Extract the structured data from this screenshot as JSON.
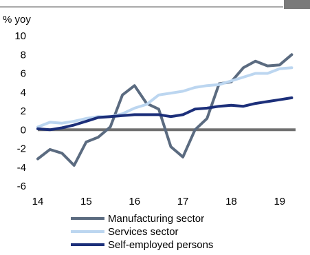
{
  "chart_data": {
    "type": "line",
    "unit_label": "% yoy",
    "xlim": [
      14,
      19.33
    ],
    "ylim": [
      -6,
      10
    ],
    "x_ticks": [
      "14",
      "15",
      "16",
      "17",
      "18",
      "19"
    ],
    "y_ticks": [
      "10",
      "8",
      "6",
      "4",
      "2",
      "0",
      "-2",
      "-4",
      "-6"
    ],
    "zero_line": true,
    "legend_position": "bottom-center",
    "series": [
      {
        "name": "Manufacturing sector",
        "color": "#5b6b80",
        "points": [
          [
            14.0,
            -3.1
          ],
          [
            14.25,
            -2.1
          ],
          [
            14.5,
            -2.5
          ],
          [
            14.75,
            -3.8
          ],
          [
            15.0,
            -1.3
          ],
          [
            15.25,
            -0.8
          ],
          [
            15.5,
            0.3
          ],
          [
            15.75,
            3.7
          ],
          [
            16.0,
            4.7
          ],
          [
            16.25,
            2.8
          ],
          [
            16.5,
            2.2
          ],
          [
            16.75,
            -1.8
          ],
          [
            17.0,
            -2.9
          ],
          [
            17.25,
            0.0
          ],
          [
            17.5,
            1.2
          ],
          [
            17.75,
            4.9
          ],
          [
            18.0,
            5.1
          ],
          [
            18.25,
            6.6
          ],
          [
            18.5,
            7.3
          ],
          [
            18.75,
            6.8
          ],
          [
            19.0,
            6.9
          ],
          [
            19.25,
            8.0
          ]
        ]
      },
      {
        "name": "Services sector",
        "color": "#bcd6f0",
        "points": [
          [
            14.0,
            0.3
          ],
          [
            14.25,
            0.8
          ],
          [
            14.5,
            0.7
          ],
          [
            14.75,
            0.9
          ],
          [
            15.0,
            1.2
          ],
          [
            15.25,
            1.4
          ],
          [
            15.5,
            1.4
          ],
          [
            15.75,
            1.7
          ],
          [
            16.0,
            2.3
          ],
          [
            16.25,
            2.7
          ],
          [
            16.5,
            3.7
          ],
          [
            16.75,
            3.9
          ],
          [
            17.0,
            4.1
          ],
          [
            17.25,
            4.5
          ],
          [
            17.5,
            4.7
          ],
          [
            17.75,
            4.8
          ],
          [
            18.0,
            5.2
          ],
          [
            18.25,
            5.6
          ],
          [
            18.5,
            6.0
          ],
          [
            18.75,
            6.0
          ],
          [
            19.0,
            6.5
          ],
          [
            19.25,
            6.6
          ]
        ]
      },
      {
        "name": "Self-employed persons",
        "color": "#1c2f7a",
        "points": [
          [
            14.0,
            0.1
          ],
          [
            14.25,
            0.0
          ],
          [
            14.5,
            0.2
          ],
          [
            14.75,
            0.5
          ],
          [
            15.0,
            0.9
          ],
          [
            15.25,
            1.3
          ],
          [
            15.5,
            1.4
          ],
          [
            15.75,
            1.5
          ],
          [
            16.0,
            1.6
          ],
          [
            16.25,
            1.6
          ],
          [
            16.5,
            1.6
          ],
          [
            16.75,
            1.4
          ],
          [
            17.0,
            1.6
          ],
          [
            17.25,
            2.2
          ],
          [
            17.5,
            2.3
          ],
          [
            17.75,
            2.5
          ],
          [
            18.0,
            2.6
          ],
          [
            18.25,
            2.5
          ],
          [
            18.5,
            2.8
          ],
          [
            18.75,
            3.0
          ],
          [
            19.0,
            3.2
          ],
          [
            19.25,
            3.4
          ]
        ]
      }
    ]
  }
}
